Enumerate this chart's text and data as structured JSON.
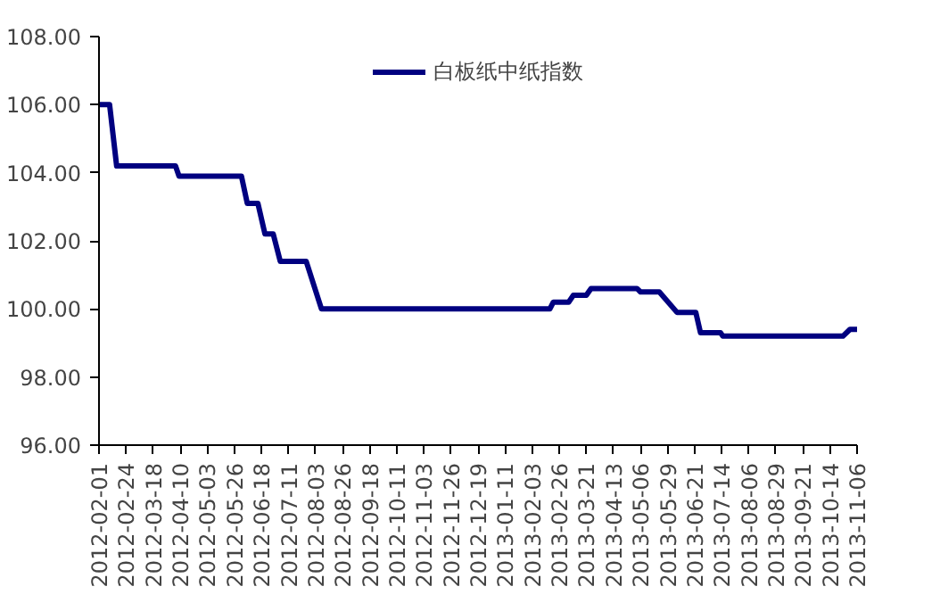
{
  "chart_data": {
    "type": "line",
    "legend": "top",
    "grid": false,
    "marker": "none",
    "line_style": "solid",
    "x": [
      "2012-02-01",
      "2012-02-10",
      "2012-02-16",
      "2012-04-06",
      "2012-04-09",
      "2012-06-01",
      "2012-06-06",
      "2012-06-15",
      "2012-06-21",
      "2012-06-28",
      "2012-07-04",
      "2012-07-26",
      "2012-08-08",
      "2013-02-18",
      "2013-02-21",
      "2013-03-06",
      "2013-03-10",
      "2013-03-21",
      "2013-03-25",
      "2013-05-03",
      "2013-05-06",
      "2013-05-22",
      "2013-06-06",
      "2013-06-22",
      "2013-06-26",
      "2013-07-13",
      "2013-07-15",
      "2013-10-25",
      "2013-10-31",
      "2013-11-06"
    ],
    "series": [
      {
        "name": "白板纸中纸指数",
        "color": "#000080",
        "values": [
          106,
          106,
          104.2,
          104.2,
          103.9,
          103.9,
          103.1,
          103.1,
          102.2,
          102.2,
          101.4,
          101.4,
          100,
          100,
          100.2,
          100.2,
          100.4,
          100.4,
          100.6,
          100.6,
          100.5,
          100.5,
          99.9,
          99.9,
          99.3,
          99.3,
          99.2,
          99.2,
          99.4,
          99.4
        ]
      }
    ],
    "xlim": [
      "2012-02-01",
      "2013-11-06"
    ],
    "xticks": [
      "2012-02-01",
      "2012-02-24",
      "2012-03-18",
      "2012-04-10",
      "2012-05-03",
      "2012-05-26",
      "2012-06-18",
      "2012-07-11",
      "2012-08-03",
      "2012-08-26",
      "2012-09-18",
      "2012-10-11",
      "2012-11-03",
      "2012-11-26",
      "2012-12-19",
      "2013-01-11",
      "2013-02-03",
      "2013-02-26",
      "2013-03-21",
      "2013-04-13",
      "2013-05-06",
      "2013-05-29",
      "2013-06-21",
      "2013-07-14",
      "2013-08-06",
      "2013-08-29",
      "2013-09-21",
      "2013-10-14",
      "2013-11-06"
    ],
    "ylim": [
      96,
      108
    ],
    "yticks": [
      {
        "value": 96,
        "label": "96.00"
      },
      {
        "value": 98,
        "label": "98.00"
      },
      {
        "value": 100,
        "label": "100.00"
      },
      {
        "value": 102,
        "label": "102.00"
      },
      {
        "value": 104,
        "label": "104.00"
      },
      {
        "value": 106,
        "label": "106.00"
      },
      {
        "value": 108,
        "label": "108.00"
      }
    ]
  }
}
